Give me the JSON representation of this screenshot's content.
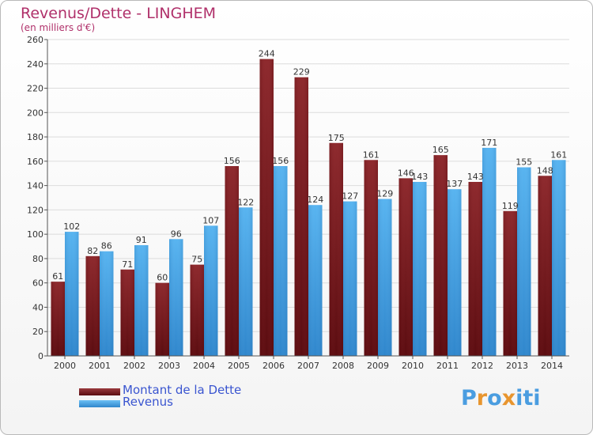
{
  "header": {
    "title": "Revenus/Dette - LINGHEM",
    "subtitle": "(en milliers d'€)"
  },
  "legend": {
    "items": [
      {
        "label": "Montant de la Dette",
        "color": "#6e1418"
      },
      {
        "label": "Revenus",
        "color": "#3d9ee2"
      }
    ]
  },
  "logo": {
    "text": "Proxiti",
    "colors": [
      "#4a9de0",
      "#e8952e",
      "#4a9de0",
      "#e8952e",
      "#4a9de0",
      "#4a9de0",
      "#4a9de0"
    ]
  },
  "chart_data": {
    "type": "bar",
    "title": "Revenus/Dette - LINGHEM",
    "subtitle": "(en milliers d'€)",
    "categories": [
      "2000",
      "2001",
      "2002",
      "2003",
      "2004",
      "2005",
      "2006",
      "2007",
      "2008",
      "2009",
      "2010",
      "2011",
      "2012",
      "2013",
      "2014"
    ],
    "series": [
      {
        "name": "Montant de la Dette",
        "color": "#7a1e22",
        "values": [
          61,
          82,
          71,
          60,
          75,
          156,
          244,
          229,
          175,
          161,
          146,
          165,
          143,
          119,
          148
        ]
      },
      {
        "name": "Revenus",
        "color": "#45a5e8",
        "values": [
          102,
          86,
          91,
          96,
          107,
          122,
          156,
          124,
          127,
          129,
          143,
          137,
          171,
          155,
          161
        ]
      }
    ],
    "ylim": [
      0,
      260
    ],
    "yticks": [
      0,
      20,
      40,
      60,
      80,
      100,
      120,
      140,
      160,
      180,
      200,
      220,
      240,
      260
    ],
    "grid": true,
    "legend_position": "bottom-left"
  }
}
